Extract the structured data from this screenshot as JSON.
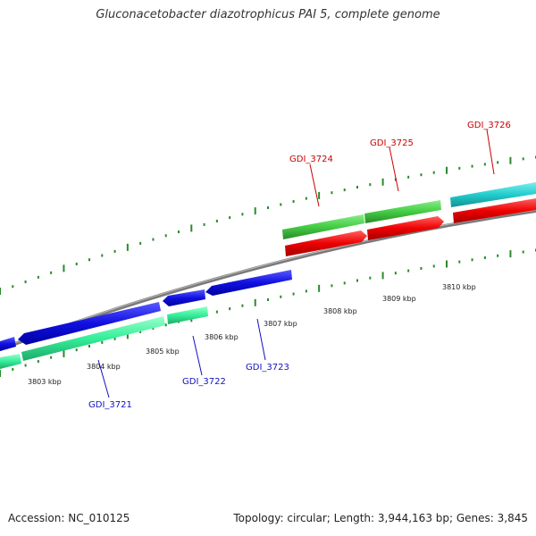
{
  "title": "Gluconacetobacter diazotrophicus PAI 5, complete genome",
  "accession": "Accession: NC_010125",
  "summary": "Topology: circular; Length: 3,944,163 bp; Genes: 3,845",
  "colors": {
    "forward_gene": "#e00000",
    "reverse_gene": "#1010e0",
    "backbone": "#808080",
    "ticks": "#2a8a2a",
    "gc_green": "#44cc44",
    "gc_cyan": "#22cccc",
    "gc_sea": "#33ee99"
  },
  "kbp_labels": [
    "3803 kbp",
    "3804 kbp",
    "3805 kbp",
    "3806 kbp",
    "3807 kbp",
    "3808 kbp",
    "3809 kbp",
    "3810 kbp"
  ],
  "genes": [
    {
      "name": "GDI_3721",
      "strand": "reverse"
    },
    {
      "name": "GDI_3722",
      "strand": "reverse"
    },
    {
      "name": "GDI_3723",
      "strand": "reverse"
    },
    {
      "name": "GDI_3724",
      "strand": "forward"
    },
    {
      "name": "GDI_3725",
      "strand": "forward"
    },
    {
      "name": "GDI_3726",
      "strand": "forward"
    }
  ]
}
